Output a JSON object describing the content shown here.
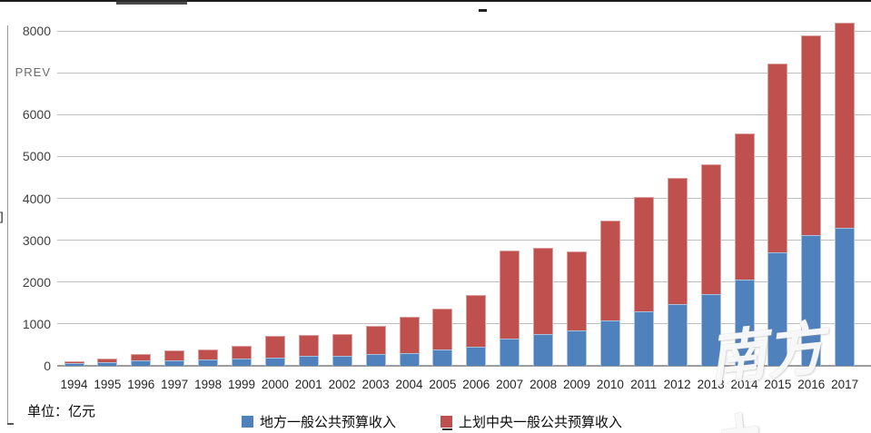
{
  "meta": {
    "unit_label": "单位：亿元",
    "watermark": "南方+",
    "prev_overlay_label": "PREV",
    "bracket_artifact": "]"
  },
  "colors": {
    "series_local": "#4F81BD",
    "series_central": "#C0504D",
    "gridline": "#BFBFBF",
    "axis": "#9C9C9C"
  },
  "chart_data": {
    "type": "bar",
    "stacked": true,
    "title": "",
    "xlabel": "",
    "ylabel": "",
    "unit_label": "单位：亿元",
    "grid": "horizontal",
    "legend_position": "bottom",
    "ylim": [
      0,
      8000
    ],
    "ytick_interval": 1000,
    "ytick_labels": [
      "0",
      "1000",
      "2000",
      "3000",
      "4000",
      "5000",
      "6000",
      "PREV",
      "8000"
    ],
    "categories": [
      "1994",
      "1995",
      "1996",
      "1997",
      "1998",
      "1999",
      "2000",
      "2001",
      "2002",
      "2003",
      "2004",
      "2005",
      "2006",
      "2007",
      "2008",
      "2009",
      "2010",
      "2011",
      "2012",
      "2013",
      "2014",
      "2015",
      "2016",
      "2017"
    ],
    "series": [
      {
        "name": "地方一般公共预算收入",
        "color": "#4F81BD",
        "values": [
          55,
          80,
          125,
          130,
          145,
          175,
          200,
          240,
          245,
          275,
          310,
          385,
          460,
          640,
          750,
          855,
          1080,
          1300,
          1470,
          1710,
          2060,
          2710,
          3120,
          3290
        ]
      },
      {
        "name": "上划中央一般公共预算收入",
        "color": "#C0504D",
        "values": [
          50,
          85,
          155,
          235,
          245,
          310,
          520,
          495,
          530,
          665,
          860,
          970,
          1230,
          2110,
          2050,
          1880,
          2380,
          2730,
          3010,
          3090,
          3490,
          4510,
          4780,
          4910
        ]
      }
    ]
  }
}
